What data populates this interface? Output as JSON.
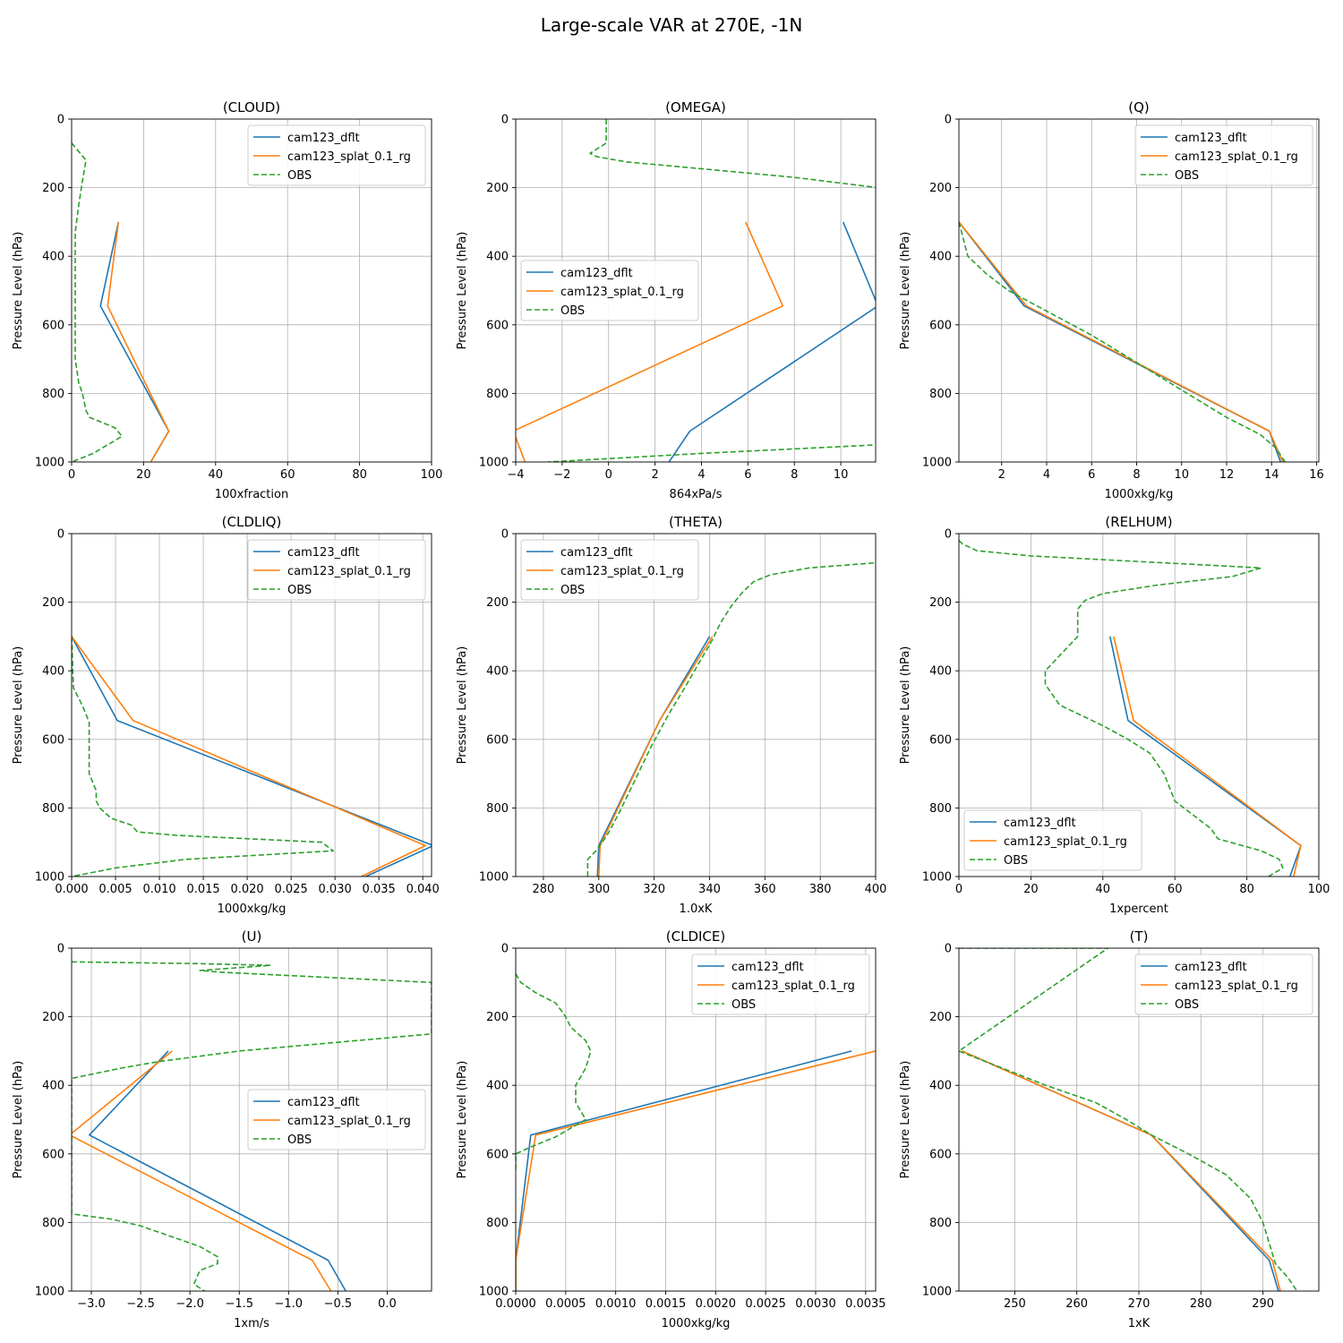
{
  "figure_title": "Large-scale VAR at 270E, -1N",
  "legend_entries": [
    "cam123_dflt",
    "cam123_splat_0.1_rg",
    "OBS"
  ],
  "colors": {
    "dflt": "#1f77b4",
    "splat": "#ff7f0e",
    "obs": "#2ca02c",
    "grid": "#b0b0b0"
  },
  "ylabel": "Pressure Level (hPa)",
  "chart_data": [
    {
      "type": "line",
      "title": "(CLOUD)",
      "xlabel": "100xfraction",
      "xlim": [
        0,
        100
      ],
      "ylim": [
        1000,
        0
      ],
      "xticks": [
        0,
        20,
        40,
        60,
        80,
        100
      ],
      "xtick_labels": [
        "0",
        "20",
        "40",
        "60",
        "80",
        "100"
      ],
      "yticks": [
        0,
        200,
        400,
        600,
        800,
        1000
      ],
      "legend_loc": "upper right",
      "series": [
        {
          "name": "cam123_dflt",
          "style": "solid",
          "x": [
            13,
            8,
            27,
            22
          ],
          "y": [
            300,
            545,
            910,
            1000
          ]
        },
        {
          "name": "cam123_splat_0.1_rg",
          "style": "solid",
          "x": [
            13,
            10,
            27,
            22
          ],
          "y": [
            300,
            545,
            910,
            1000
          ]
        },
        {
          "name": "OBS",
          "style": "dashed",
          "x": [
            0,
            4,
            3,
            2,
            1,
            1,
            1,
            1,
            1,
            2,
            3,
            4,
            5,
            12,
            14,
            10,
            6,
            0
          ],
          "y": [
            70,
            120,
            180,
            250,
            330,
            420,
            500,
            600,
            700,
            770,
            800,
            850,
            870,
            900,
            925,
            950,
            975,
            1000
          ]
        }
      ]
    },
    {
      "type": "line",
      "title": "(OMEGA)",
      "xlabel": "864xPa/s",
      "xlim": [
        -4,
        11.5
      ],
      "ylim": [
        1000,
        0
      ],
      "xticks": [
        -4,
        -2,
        0,
        2,
        4,
        6,
        8,
        10
      ],
      "xtick_labels": [
        "−4",
        "−2",
        "0",
        "2",
        "4",
        "6",
        "8",
        "10"
      ],
      "yticks": [
        0,
        200,
        400,
        600,
        800,
        1000
      ],
      "legend_loc": "center left",
      "series": [
        {
          "name": "cam123_dflt",
          "style": "solid",
          "x": [
            10.1,
            11.6,
            3.5,
            2.6
          ],
          "y": [
            300,
            545,
            910,
            1000
          ]
        },
        {
          "name": "cam123_splat_0.1_rg",
          "style": "solid",
          "x": [
            5.9,
            7.5,
            -4.1,
            -3.6
          ],
          "y": [
            300,
            545,
            910,
            1000
          ]
        },
        {
          "name": "OBS",
          "style": "dashed",
          "x": [
            -0.1,
            -0.1,
            -0.1,
            -0.8,
            -0.5,
            0.8,
            4.0,
            8.0,
            11.6,
            11.6,
            4.0,
            -2.6
          ],
          "y": [
            0,
            30,
            70,
            100,
            110,
            125,
            145,
            170,
            200,
            950,
            975,
            1000
          ]
        }
      ]
    },
    {
      "type": "line",
      "title": "(Q)",
      "xlabel": "1000xkg/kg",
      "xlim": [
        0.1,
        16.1
      ],
      "ylim": [
        1000,
        0
      ],
      "xticks": [
        2,
        4,
        6,
        8,
        10,
        12,
        14,
        16
      ],
      "xtick_labels": [
        "2",
        "4",
        "6",
        "8",
        "10",
        "12",
        "14",
        "16"
      ],
      "yticks": [
        0,
        200,
        400,
        600,
        800,
        1000
      ],
      "legend_loc": "upper right",
      "series": [
        {
          "name": "cam123_dflt",
          "style": "solid",
          "x": [
            0.1,
            3.0,
            13.9,
            14.4
          ],
          "y": [
            300,
            545,
            910,
            1000
          ]
        },
        {
          "name": "cam123_splat_0.1_rg",
          "style": "solid",
          "x": [
            0.1,
            3.1,
            13.9,
            14.5
          ],
          "y": [
            300,
            545,
            910,
            1000
          ]
        },
        {
          "name": "OBS",
          "style": "dashed",
          "x": [
            0.1,
            0.5,
            1.3,
            2.3,
            4.0,
            6.0,
            8.0,
            10.0,
            12.0,
            13.5,
            14.2,
            14.6
          ],
          "y": [
            300,
            400,
            450,
            500,
            560,
            630,
            710,
            790,
            870,
            920,
            960,
            1000
          ]
        }
      ]
    },
    {
      "type": "line",
      "title": "(CLDLIQ)",
      "xlabel": "1000xkg/kg",
      "xlim": [
        0,
        0.041
      ],
      "ylim": [
        1000,
        0
      ],
      "xticks": [
        0,
        0.005,
        0.01,
        0.015,
        0.02,
        0.025,
        0.03,
        0.035,
        0.04
      ],
      "xtick_labels": [
        "0.000",
        "0.005",
        "0.010",
        "0.015",
        "0.020",
        "0.025",
        "0.030",
        "0.035",
        "0.040"
      ],
      "yticks": [
        0,
        200,
        400,
        600,
        800,
        1000
      ],
      "legend_loc": "upper right",
      "series": [
        {
          "name": "cam123_dflt",
          "style": "solid",
          "x": [
            0,
            0.0052,
            0.0412,
            0.0335
          ],
          "y": [
            300,
            545,
            910,
            1000
          ]
        },
        {
          "name": "cam123_splat_0.1_rg",
          "style": "solid",
          "x": [
            0,
            0.007,
            0.0403,
            0.033
          ],
          "y": [
            300,
            545,
            910,
            1000
          ]
        },
        {
          "name": "OBS",
          "style": "dashed",
          "x": [
            0,
            0.0002,
            0.0012,
            0.002,
            0.002,
            0.002,
            0.0028,
            0.0028,
            0.0032,
            0.0045,
            0.0068,
            0.0075,
            0.012,
            0.0285,
            0.0298,
            0.013,
            0.005,
            0
          ],
          "y": [
            300,
            450,
            500,
            550,
            650,
            700,
            750,
            780,
            800,
            830,
            850,
            870,
            880,
            900,
            925,
            950,
            975,
            1000
          ]
        }
      ]
    },
    {
      "type": "line",
      "title": "(THETA)",
      "xlabel": "1.0xK",
      "xlim": [
        270,
        400
      ],
      "ylim": [
        1000,
        0
      ],
      "xticks": [
        280,
        300,
        320,
        340,
        360,
        380,
        400
      ],
      "xtick_labels": [
        "280",
        "300",
        "320",
        "340",
        "360",
        "380",
        "400"
      ],
      "yticks": [
        0,
        200,
        400,
        600,
        800,
        1000
      ],
      "legend_loc": "upper left",
      "series": [
        {
          "name": "cam123_dflt",
          "style": "solid",
          "x": [
            340,
            322,
            300,
            299.5
          ],
          "y": [
            300,
            545,
            910,
            1000
          ]
        },
        {
          "name": "cam123_splat_0.1_rg",
          "style": "solid",
          "x": [
            341,
            322,
            300.5,
            300
          ],
          "y": [
            300,
            545,
            910,
            1000
          ]
        },
        {
          "name": "OBS",
          "style": "dashed",
          "x": [
            296,
            296,
            299,
            303,
            307,
            313,
            319,
            325,
            331,
            336,
            341,
            344,
            348,
            352,
            356,
            362,
            376,
            400
          ],
          "y": [
            1000,
            950,
            925,
            880,
            820,
            720,
            620,
            530,
            450,
            380,
            310,
            260,
            210,
            170,
            140,
            120,
            100,
            85
          ]
        }
      ]
    },
    {
      "type": "line",
      "title": "(RELHUM)",
      "xlabel": "1xpercent",
      "xlim": [
        0,
        100
      ],
      "ylim": [
        1000,
        0
      ],
      "xticks": [
        0,
        20,
        40,
        60,
        80,
        100
      ],
      "xtick_labels": [
        "0",
        "20",
        "40",
        "60",
        "80",
        "100"
      ],
      "yticks": [
        0,
        200,
        400,
        600,
        800,
        1000
      ],
      "legend_loc": "lower left",
      "series": [
        {
          "name": "cam123_dflt",
          "style": "solid",
          "x": [
            42,
            47,
            95,
            92
          ],
          "y": [
            300,
            545,
            910,
            1000
          ]
        },
        {
          "name": "cam123_splat_0.1_rg",
          "style": "solid",
          "x": [
            43,
            48.5,
            95,
            93
          ],
          "y": [
            300,
            545,
            910,
            1000
          ]
        },
        {
          "name": "OBS",
          "style": "dashed",
          "x": [
            0,
            1,
            5,
            20,
            84,
            76,
            55,
            40,
            35,
            33,
            33,
            24,
            24,
            28,
            40,
            47,
            53,
            57,
            60,
            70,
            72,
            84,
            89,
            90,
            86
          ],
          "y": [
            20,
            30,
            50,
            65,
            100,
            125,
            150,
            175,
            195,
            220,
            300,
            400,
            440,
            500,
            560,
            600,
            640,
            700,
            780,
            860,
            890,
            925,
            950,
            975,
            1000
          ]
        }
      ]
    },
    {
      "type": "line",
      "title": "(U)",
      "xlabel": "1xm/s",
      "xlim": [
        -3.2,
        0.45
      ],
      "ylim": [
        1000,
        0
      ],
      "xticks": [
        -3.0,
        -2.5,
        -2.0,
        -1.5,
        -1.0,
        -0.5,
        0.0
      ],
      "xtick_labels": [
        "−3.0",
        "−2.5",
        "−2.0",
        "−1.5",
        "−1.0",
        "−0.5",
        "0.0"
      ],
      "yticks": [
        0,
        200,
        400,
        600,
        800,
        1000
      ],
      "legend_loc": "center right",
      "series": [
        {
          "name": "cam123_dflt",
          "style": "solid",
          "x": [
            -2.22,
            -3.02,
            -0.6,
            -0.42
          ],
          "y": [
            300,
            545,
            910,
            1000
          ]
        },
        {
          "name": "cam123_splat_0.1_rg",
          "style": "solid",
          "x": [
            -2.18,
            -3.22,
            -0.76,
            -0.57
          ],
          "y": [
            300,
            545,
            910,
            1000
          ]
        },
        {
          "name": "OBS",
          "style": "dashed",
          "x": [
            -3.2,
            -1.95,
            -1.18,
            -1.9,
            -1.7,
            0.45,
            0.45,
            0.45,
            -1.5,
            -2.3,
            -2.7,
            -3.2,
            -3.2,
            -3.2,
            -2.8,
            -2.5,
            -2.2,
            -1.9,
            -1.72,
            -1.72,
            -1.9,
            -1.96,
            -1.85
          ],
          "y": [
            40,
            45,
            50,
            65,
            70,
            100,
            150,
            250,
            300,
            330,
            350,
            380,
            400,
            775,
            790,
            810,
            840,
            870,
            900,
            920,
            940,
            980,
            1000
          ]
        }
      ]
    },
    {
      "type": "line",
      "title": "(CLDICE)",
      "xlabel": "1000xkg/kg",
      "xlim": [
        0,
        0.0036
      ],
      "ylim": [
        1000,
        0
      ],
      "xticks": [
        0,
        0.0005,
        0.001,
        0.0015,
        0.002,
        0.0025,
        0.003,
        0.0035
      ],
      "xtick_labels": [
        "0.0000",
        "0.0005",
        "0.0010",
        "0.0015",
        "0.0020",
        "0.0025",
        "0.0030",
        "0.0035"
      ],
      "yticks": [
        0,
        200,
        400,
        600,
        800,
        1000
      ],
      "legend_loc": "upper right",
      "series": [
        {
          "name": "cam123_dflt",
          "style": "solid",
          "x": [
            0.00336,
            0.00015,
            0.0,
            0.0
          ],
          "y": [
            300,
            545,
            910,
            1000
          ]
        },
        {
          "name": "cam123_splat_0.1_rg",
          "style": "solid",
          "x": [
            0.0036,
            0.0002,
            0.0,
            0.0
          ],
          "y": [
            300,
            545,
            910,
            1000
          ]
        },
        {
          "name": "OBS",
          "style": "dashed",
          "x": [
            0,
            5e-05,
            0.0002,
            0.0004,
            0.0005,
            0.00055,
            0.0007,
            0.00075,
            0.0007,
            0.0006,
            0.0006,
            0.0007,
            0.0004,
            0.00015,
            0.0,
            0.0
          ],
          "y": [
            75,
            100,
            130,
            160,
            200,
            230,
            270,
            300,
            350,
            400,
            450,
            500,
            550,
            580,
            600,
            650
          ]
        }
      ]
    },
    {
      "type": "line",
      "title": "(T)",
      "xlabel": "1xK",
      "xlim": [
        241,
        299
      ],
      "ylim": [
        1000,
        0
      ],
      "xticks": [
        250,
        260,
        270,
        280,
        290
      ],
      "xtick_labels": [
        "250",
        "260",
        "270",
        "280",
        "290"
      ],
      "yticks": [
        0,
        200,
        400,
        600,
        800,
        1000
      ],
      "legend_loc": "upper right",
      "series": [
        {
          "name": "cam123_dflt",
          "style": "solid",
          "x": [
            241.5,
            272,
            291,
            292.5
          ],
          "y": [
            300,
            545,
            910,
            1000
          ]
        },
        {
          "name": "cam123_splat_0.1_rg",
          "style": "solid",
          "x": [
            241.5,
            272,
            291.5,
            292.8
          ],
          "y": [
            300,
            545,
            910,
            1000
          ]
        },
        {
          "name": "OBS",
          "style": "dashed",
          "x": [
            241,
            265,
            241,
            248,
            255,
            263,
            268,
            272,
            278,
            284,
            288,
            290,
            291,
            292,
            294,
            295.5
          ],
          "y": [
            0,
            0,
            300,
            350,
            400,
            450,
            500,
            545,
            600,
            660,
            730,
            800,
            860,
            920,
            960,
            1000
          ]
        }
      ]
    }
  ]
}
